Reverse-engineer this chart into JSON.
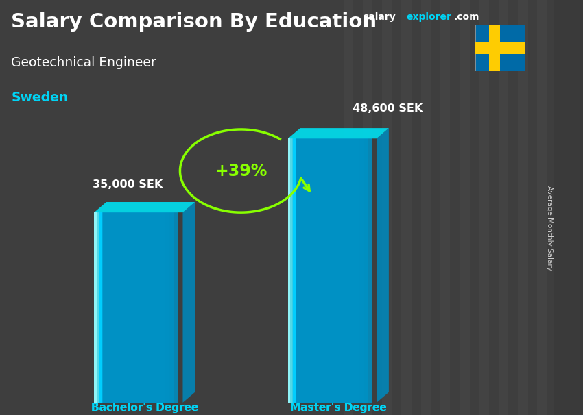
{
  "title_main": "Salary Comparison By Education",
  "subtitle": "Geotechnical Engineer",
  "country": "Sweden",
  "categories": [
    "Bachelor's Degree",
    "Master's Degree"
  ],
  "values": [
    35000,
    48600
  ],
  "value_labels": [
    "35,000 SEK",
    "48,600 SEK"
  ],
  "pct_change": "+39%",
  "bar_face_color": "#00cfff",
  "bar_left_highlight": "#55eeff",
  "bar_right_shadow": "#0088bb",
  "bar_top_color": "#00ddee",
  "text_color_white": "#ffffff",
  "text_color_cyan": "#00d4f5",
  "text_color_green": "#88ff00",
  "brand_text": "salaryexplorer.com",
  "brand_salary_color": "#00ccff",
  "brand_explorer_color": "#ffffff",
  "brand_dotcom_color": "#00ccff",
  "ylabel": "Average Monthly Salary",
  "bg_color": "#3a3a3a",
  "fig_width": 8.5,
  "fig_height": 6.06,
  "flag_blue": "#006AA7",
  "flag_yellow": "#FECC02"
}
